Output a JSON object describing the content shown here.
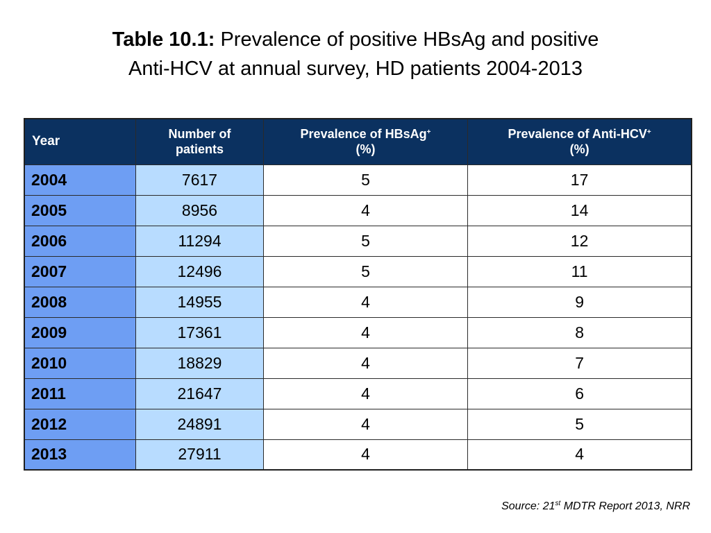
{
  "title": {
    "label": "Table 10.1:",
    "line1": "Prevalence of positive HBsAg and positive",
    "line2": "Anti-HCV at annual survey, HD patients 2004-2013"
  },
  "table": {
    "headers": {
      "year": "Year",
      "patients_line1": "Number of",
      "patients_line2": "patients",
      "hbsag_line1": "Prevalence of HBsAg",
      "hbsag_sup": "+",
      "hbsag_line2": "(%)",
      "hcv_line1": "Prevalence of Anti-HCV",
      "hcv_sup": "+",
      "hcv_line2": "(%)"
    },
    "rows": [
      {
        "year": "2004",
        "patients": "7617",
        "hbsag": "5",
        "hcv": "17"
      },
      {
        "year": "2005",
        "patients": "8956",
        "hbsag": "4",
        "hcv": "14"
      },
      {
        "year": "2006",
        "patients": "11294",
        "hbsag": "5",
        "hcv": "12"
      },
      {
        "year": "2007",
        "patients": "12496",
        "hbsag": "5",
        "hcv": "11"
      },
      {
        "year": "2008",
        "patients": "14955",
        "hbsag": "4",
        "hcv": "9"
      },
      {
        "year": "2009",
        "patients": "17361",
        "hbsag": "4",
        "hcv": "8"
      },
      {
        "year": "2010",
        "patients": "18829",
        "hbsag": "4",
        "hcv": "7"
      },
      {
        "year": "2011",
        "patients": "21647",
        "hbsag": "4",
        "hcv": "6"
      },
      {
        "year": "2012",
        "patients": "24891",
        "hbsag": "4",
        "hcv": "5"
      },
      {
        "year": "2013",
        "patients": "27911",
        "hbsag": "4",
        "hcv": "4"
      }
    ]
  },
  "source": {
    "prefix": "Source: 21",
    "sup": "st",
    "suffix": " MDTR Report 2013, NRR"
  },
  "colors": {
    "header_bg": "#0b3160",
    "year_col_bg": "#6e9ef3",
    "patients_col_bg": "#b8dcff"
  }
}
